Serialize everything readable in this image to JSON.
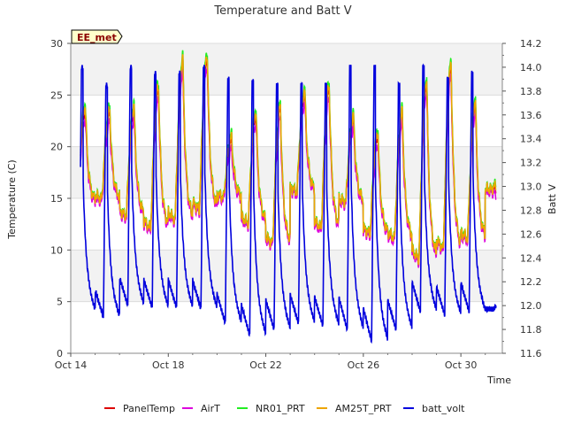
{
  "chart_data": {
    "type": "line",
    "title": "Temperature and Batt V",
    "site_label": "EE_met",
    "xlabel": "Time",
    "ylabel": "Temperature (C)",
    "y2label": "Batt V",
    "ylim": [
      0,
      30
    ],
    "y2lim": [
      11.6,
      14.2
    ],
    "x_range_days": [
      "Oct 14",
      "Oct 31"
    ],
    "x_ticks": [
      "Oct 14",
      "Oct 18",
      "Oct 22",
      "Oct 26",
      "Oct 30"
    ],
    "y_ticks": [
      0,
      5,
      10,
      15,
      20,
      25,
      30
    ],
    "y2_ticks": [
      11.6,
      11.8,
      12.0,
      12.2,
      12.4,
      12.6,
      12.8,
      13.0,
      13.2,
      13.4,
      13.6,
      13.8,
      14.0,
      14.2
    ],
    "grid": true,
    "legend_position": "bottom",
    "daily": {
      "dates": [
        "Oct 14",
        "Oct 15",
        "Oct 16",
        "Oct 17",
        "Oct 18",
        "Oct 19",
        "Oct 20",
        "Oct 21",
        "Oct 22",
        "Oct 23",
        "Oct 24",
        "Oct 25",
        "Oct 26",
        "Oct 27",
        "Oct 28",
        "Oct 29",
        "Oct 30",
        "Oct 31"
      ],
      "temp_min": [
        14.5,
        14.8,
        13.2,
        12.0,
        12.8,
        13.8,
        15.0,
        12.5,
        10.5,
        15.5,
        12.0,
        14.5,
        11.5,
        11.0,
        9.0,
        10.0,
        11.0,
        15.8
      ],
      "temp_max": [
        23.5,
        23.2,
        23.5,
        25.5,
        28.0,
        28.5,
        20.5,
        23.0,
        23.5,
        25.0,
        25.5,
        22.5,
        21.0,
        23.0,
        26.0,
        27.5,
        24.0,
        16.0
      ],
      "batt_min": [
        11.95,
        11.9,
        12.0,
        11.98,
        11.98,
        11.97,
        11.85,
        11.75,
        11.8,
        11.85,
        11.83,
        11.8,
        11.7,
        11.8,
        11.95,
        11.92,
        11.95,
        11.97
      ],
      "batt_max": [
        14.0,
        13.85,
        14.0,
        13.95,
        13.95,
        14.0,
        13.9,
        13.88,
        13.85,
        13.85,
        13.85,
        14.0,
        14.0,
        13.85,
        14.0,
        13.9,
        13.95,
        12.0
      ]
    },
    "series": [
      {
        "name": "PanelTemp",
        "color": "#dd0000",
        "axis": "left",
        "offset": 0.0
      },
      {
        "name": "AirT",
        "color": "#dd00dd",
        "axis": "left",
        "offset": -0.6
      },
      {
        "name": "NR01_PRT",
        "color": "#22ee22",
        "axis": "left",
        "offset": 0.6
      },
      {
        "name": "AM25T_PRT",
        "color": "#eea500",
        "axis": "left",
        "offset": 0.3
      },
      {
        "name": "batt_volt",
        "color": "#0000dd",
        "axis": "right",
        "offset": 0.0
      }
    ]
  }
}
